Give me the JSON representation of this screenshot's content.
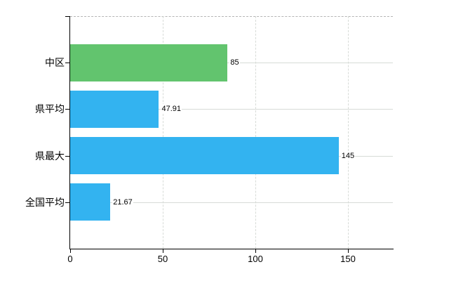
{
  "chart_data": {
    "type": "bar",
    "orientation": "horizontal",
    "categories": [
      "中区",
      "県平均",
      "県最大",
      "全国平均"
    ],
    "values": [
      85,
      47.91,
      145,
      21.67
    ],
    "value_labels": [
      "85",
      "47.91",
      "145",
      "21.67"
    ],
    "bar_colors": [
      "#62c46e",
      "#33b3f0",
      "#33b3f0",
      "#33b3f0"
    ],
    "x_ticks": [
      0,
      50,
      100,
      150
    ],
    "x_tick_labels": [
      "0",
      "50",
      "100",
      "150"
    ],
    "xlim": [
      0,
      174
    ],
    "grid": true,
    "legend_position": "none"
  },
  "colors": {
    "axis": "#000000",
    "gridline": "#d7dbd7",
    "top_border": "#b5b5b5",
    "background": "#ffffff",
    "text": "#000000",
    "green_bar": "#62c46e",
    "blue_bar": "#33b3f0"
  }
}
